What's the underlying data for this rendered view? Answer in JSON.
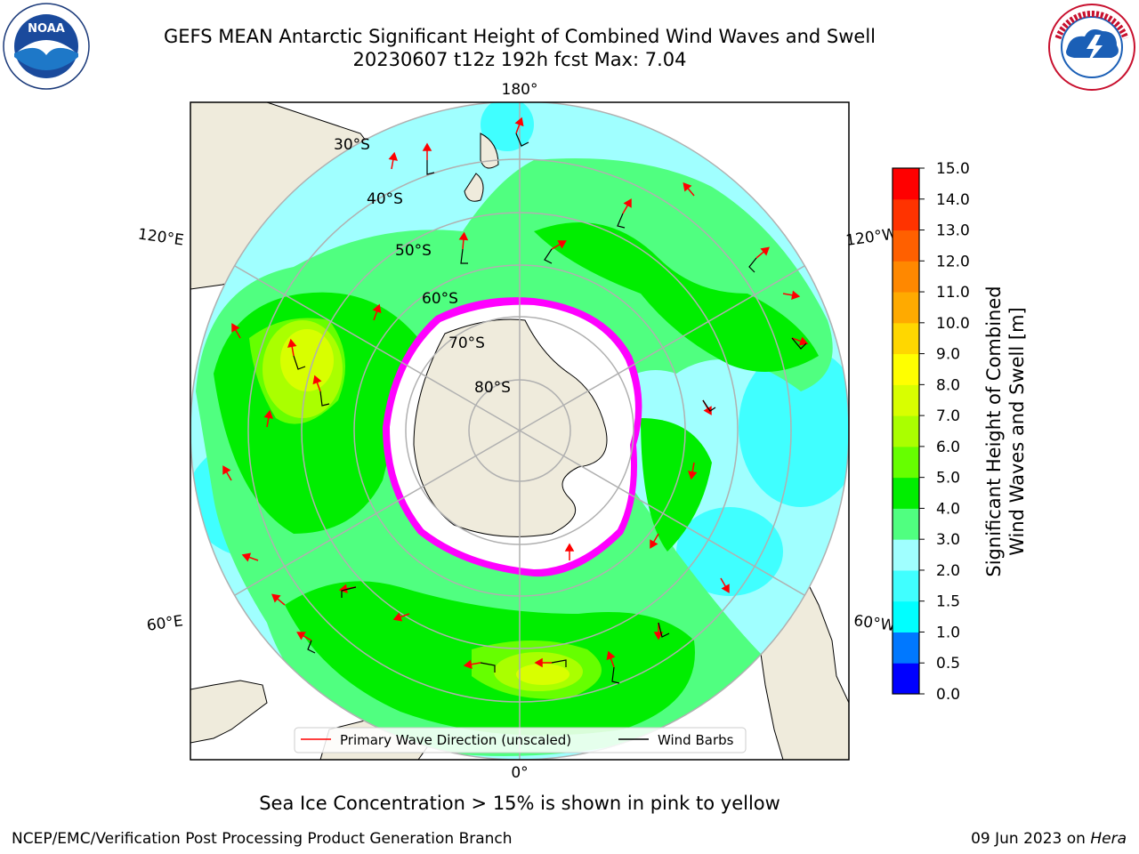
{
  "title": {
    "line1": "GEFS MEAN Antarctic Significant Height of Combined Wind Waves and Swell",
    "line2": "20230607 t12z 192h fcst   Max: 7.04"
  },
  "logos": {
    "left": {
      "icon": "noaa-logo",
      "text": "NOAA",
      "ring_text": "NATIONAL OCEANIC AND ATMOSPHERIC ADMINISTRATION · U.S. DEPARTMENT OF COMMERCE"
    },
    "right": {
      "icon": "nws-logo",
      "ring_text": "NATIONAL WEATHER SERVICE"
    }
  },
  "map": {
    "projection": "south-polar-stereographic",
    "longitude_labels": {
      "top": "180°",
      "bottom": "0°",
      "left_upper": "120°E",
      "left_lower": "60°E",
      "right_upper": "120°W",
      "right_lower": "60°W"
    },
    "latitude_labels": [
      "30°S",
      "40°S",
      "50°S",
      "60°S",
      "70°S",
      "80°S"
    ],
    "colors": {
      "land": "#efebdc",
      "ice_edge": "#ff00ff",
      "wave_arrow": "#ff0000",
      "wind_barb": "#000000",
      "graticule": "#b0b0b0"
    },
    "legend": [
      {
        "label": "Primary Wave Direction (unscaled)",
        "color": "#ff0000"
      },
      {
        "label": "Wind Barbs",
        "color": "#000000"
      }
    ]
  },
  "colorbar": {
    "label_line1": "Significant Height of Combined",
    "label_line2": "Wind Waves and Swell [m]",
    "ticks": [
      "15.0",
      "14.0",
      "13.0",
      "12.0",
      "11.0",
      "10.0",
      "9.0",
      "8.0",
      "7.0",
      "6.0",
      "5.0",
      "4.0",
      "3.0",
      "2.0",
      "1.5",
      "1.0",
      "0.5",
      "0.0"
    ],
    "colors_bottom_to_top": [
      "#0000ff",
      "#0078ff",
      "#00ffff",
      "#40ffff",
      "#a0ffff",
      "#50ff80",
      "#00ee00",
      "#66ff00",
      "#aaff00",
      "#d8ff00",
      "#ffff00",
      "#ffd700",
      "#ffaa00",
      "#ff8800",
      "#ff6000",
      "#ff3300",
      "#ff0000"
    ]
  },
  "footer": {
    "note": "Sea Ice Concentration > 15% is shown in pink to yellow",
    "left": "NCEP/EMC/Verification Post Processing Product Generation Branch",
    "right_date": "09 Jun 2023 on ",
    "right_host": "Hera"
  }
}
